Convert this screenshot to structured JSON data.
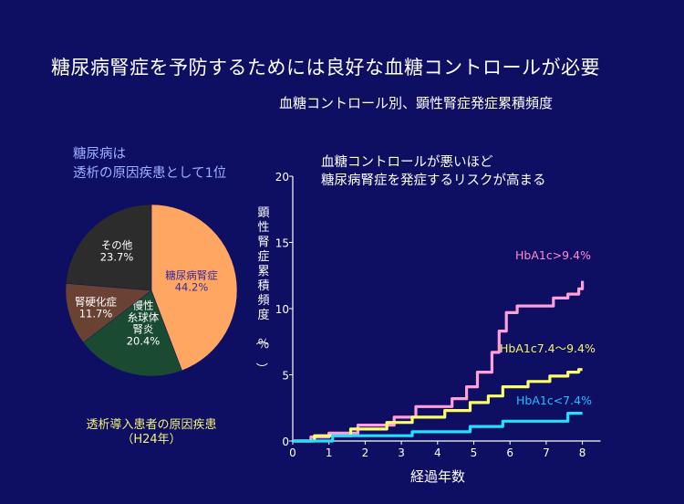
{
  "header": {
    "title": "糖尿病腎症を予防するためには良好な血糖コントロールが必要",
    "subtitle": "血糖コントロール別、顕性腎症発症累積頻度"
  },
  "pie_note": {
    "line1": "糖尿病は",
    "line2": "透析の原因疾患として1位"
  },
  "line_note": {
    "line1": "血糖コントロールが悪いほど",
    "line2": "糖尿病腎症を発症するリスクが高まる"
  },
  "pie_caption": {
    "line1": "透析導入患者の原因疾患",
    "line2": "（H24年）"
  },
  "colors": {
    "background": "#0e0f63"
  },
  "chart_data": [
    {
      "type": "pie",
      "title": "透析導入患者の原因疾患（H24年）",
      "slices": [
        {
          "label": "糖尿病腎症",
          "value": 44.2,
          "value_label": "44.2%",
          "color": "#ffa662",
          "text_color": "#3a2a9a"
        },
        {
          "label": "慢性糸球体腎炎",
          "label_lines": [
            "慢性",
            "糸球体",
            "腎炎"
          ],
          "value": 20.4,
          "value_label": "20.4%",
          "color": "#1b4a33",
          "text_color": "#ffffff"
        },
        {
          "label": "腎硬化症",
          "value": 11.7,
          "value_label": "11.7%",
          "color": "#6a4233",
          "text_color": "#ffffff"
        },
        {
          "label": "その他",
          "value": 23.7,
          "value_label": "23.7%",
          "color": "#2c2c2c",
          "text_color": "#ffffff"
        }
      ]
    },
    {
      "type": "line",
      "title": "血糖コントロール別、顕性腎症発症累積頻度",
      "xlabel": "経過年数",
      "ylabel": "顕性腎症累積頻度（％）",
      "xlim": [
        0,
        8.5
      ],
      "ylim": [
        0,
        20
      ],
      "xticks": [
        0,
        1,
        2,
        3,
        4,
        5,
        6,
        7,
        8
      ],
      "yticks": [
        0,
        5,
        10,
        15,
        20
      ],
      "series": [
        {
          "name": "HbA1c>9.4%",
          "color": "#ff9ed8",
          "label_color": "#ff8ccf",
          "points": [
            [
              0,
              0
            ],
            [
              0.5,
              0
            ],
            [
              0.5,
              0.3
            ],
            [
              1,
              0.3
            ],
            [
              1,
              0.6
            ],
            [
              1.8,
              0.6
            ],
            [
              1.8,
              1.2
            ],
            [
              2.8,
              1.2
            ],
            [
              2.8,
              1.8
            ],
            [
              3.4,
              1.8
            ],
            [
              3.4,
              2.6
            ],
            [
              4.4,
              2.6
            ],
            [
              4.4,
              3.2
            ],
            [
              4.8,
              3.2
            ],
            [
              4.8,
              4.1
            ],
            [
              5.1,
              4.1
            ],
            [
              5.1,
              5.2
            ],
            [
              5.5,
              5.2
            ],
            [
              5.5,
              6.7
            ],
            [
              5.7,
              6.7
            ],
            [
              5.7,
              8.3
            ],
            [
              5.9,
              8.3
            ],
            [
              5.9,
              9.7
            ],
            [
              6.2,
              9.7
            ],
            [
              6.2,
              10.2
            ],
            [
              7.2,
              10.2
            ],
            [
              7.2,
              10.8
            ],
            [
              7.6,
              10.8
            ],
            [
              7.6,
              11.1
            ],
            [
              7.9,
              11.1
            ],
            [
              7.9,
              11.5
            ],
            [
              8,
              11.5
            ],
            [
              8,
              12.1
            ]
          ]
        },
        {
          "name": "HbA1c7.4～9.4%",
          "color": "#fbff6a",
          "label_color": "#f3f66a",
          "points": [
            [
              0,
              0
            ],
            [
              0.6,
              0
            ],
            [
              0.6,
              0.4
            ],
            [
              1.6,
              0.4
            ],
            [
              1.6,
              0.9
            ],
            [
              2.6,
              0.9
            ],
            [
              2.6,
              1.4
            ],
            [
              3.3,
              1.4
            ],
            [
              3.3,
              1.8
            ],
            [
              4.2,
              1.8
            ],
            [
              4.2,
              2.3
            ],
            [
              4.9,
              2.3
            ],
            [
              4.9,
              2.9
            ],
            [
              5.4,
              2.9
            ],
            [
              5.4,
              3.4
            ],
            [
              5.8,
              3.4
            ],
            [
              5.8,
              4.1
            ],
            [
              6.5,
              4.1
            ],
            [
              6.5,
              4.5
            ],
            [
              7.1,
              4.5
            ],
            [
              7.1,
              4.9
            ],
            [
              7.6,
              4.9
            ],
            [
              7.6,
              5.2
            ],
            [
              7.9,
              5.2
            ],
            [
              7.9,
              5.4
            ],
            [
              8,
              5.4
            ]
          ]
        },
        {
          "name": "HbA1c<7.4%",
          "color": "#22e1ff",
          "label_color": "#1fc0ff",
          "points": [
            [
              0,
              0
            ],
            [
              1.1,
              0
            ],
            [
              1.1,
              0.4
            ],
            [
              3.3,
              0.4
            ],
            [
              3.3,
              0.7
            ],
            [
              4.9,
              0.7
            ],
            [
              4.9,
              1.1
            ],
            [
              5.8,
              1.1
            ],
            [
              5.8,
              1.5
            ],
            [
              7.6,
              1.5
            ],
            [
              7.6,
              2.1
            ],
            [
              8,
              2.1
            ]
          ]
        }
      ]
    }
  ]
}
